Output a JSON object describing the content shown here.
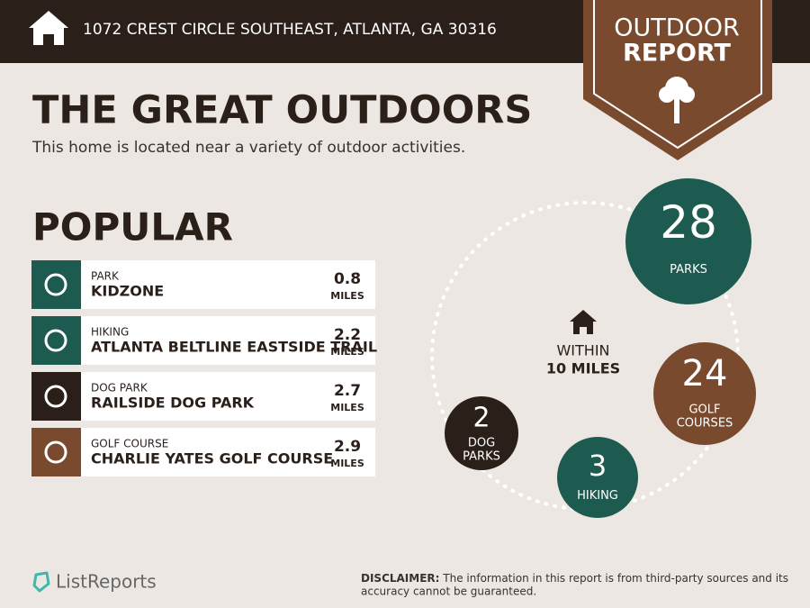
{
  "header": {
    "address": "1072 CREST CIRCLE SOUTHEAST, ATLANTA, GA 30316",
    "badge": [
      "OUTDOOR",
      "REPORT"
    ]
  },
  "title": "THE GREAT OUTDOORS",
  "subtitle": "This home is located near a variety of outdoor activities.",
  "popular": {
    "heading": "POPULAR",
    "items": [
      {
        "category": "PARK",
        "name": "KIDZONE",
        "distance": 0.8,
        "unit": "MILES"
      },
      {
        "category": "HIKING",
        "name": "ATLANTA BELTLINE EASTSIDE TRAIL",
        "distance": 2.2,
        "unit": "MILES"
      },
      {
        "category": "DOG PARK",
        "name": "RAILSIDE DOG PARK",
        "distance": 2.7,
        "unit": "MILES"
      },
      {
        "category": "GOLF COURSE",
        "name": "CHARLIE YATES GOLF COURSE",
        "distance": 2.9,
        "unit": "MILES"
      }
    ]
  },
  "within": {
    "label": [
      "WITHIN",
      "10 MILES"
    ],
    "counts": [
      {
        "value": 28,
        "label": [
          "PARKS"
        ]
      },
      {
        "value": 24,
        "label": [
          "GOLF",
          "COURSES"
        ]
      },
      {
        "value": 3,
        "label": [
          "HIKING"
        ]
      },
      {
        "value": 2,
        "label": [
          "DOG",
          "PARKS"
        ]
      }
    ]
  },
  "footer": {
    "brand": "ListReports",
    "disclaimer_label": "DISCLAIMER:",
    "disclaimer": [
      "The information in this report is from third-party sources and its",
      "accuracy cannot be guaranteed."
    ]
  }
}
